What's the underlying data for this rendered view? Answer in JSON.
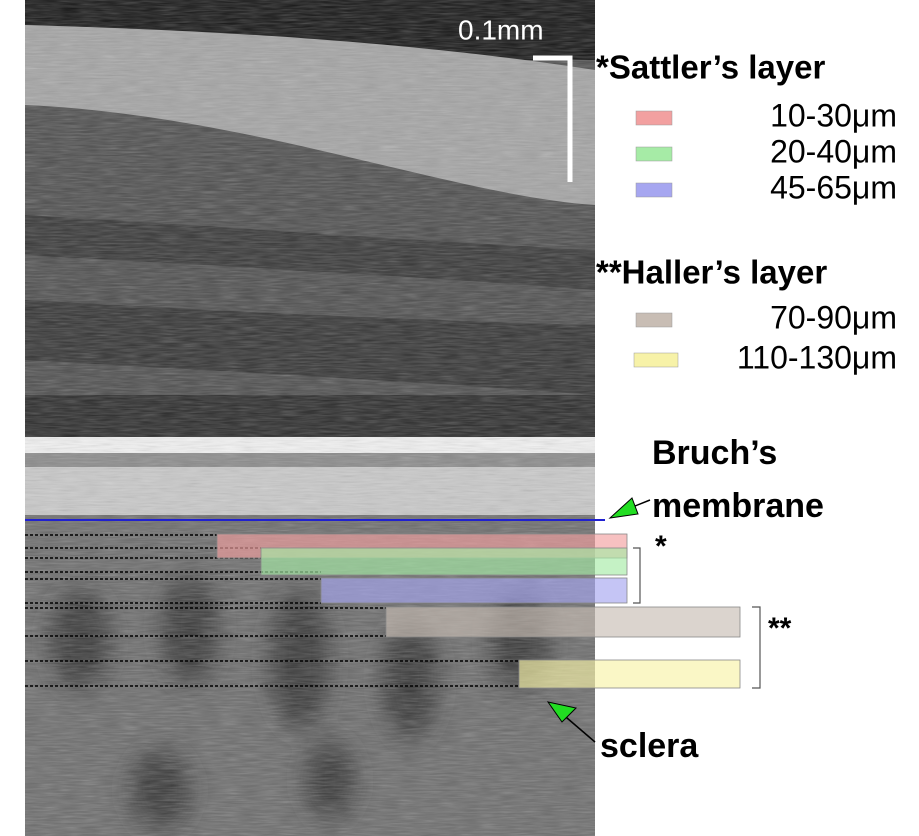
{
  "scale_bar": {
    "label": "0.1mm"
  },
  "legend": {
    "groups": [
      {
        "title": "*Sattler’s layer",
        "items": [
          {
            "label": "10-30μm",
            "color": "#f2a0a0"
          },
          {
            "label": "20-40μm",
            "color": "#a6eba6"
          },
          {
            "label": "45-65μm",
            "color": "#a6a6f0"
          }
        ]
      },
      {
        "title": "**Haller’s layer",
        "items": [
          {
            "label": "70-90μm",
            "color": "#c8bdb4"
          },
          {
            "label": "110-130μm",
            "color": "#f7f2a8"
          }
        ]
      }
    ]
  },
  "annotations": {
    "bruchs": [
      "Bruch’s",
      "membrane"
    ],
    "sattler_mark": "*",
    "haller_mark": "**",
    "sclera": "sclera"
  }
}
